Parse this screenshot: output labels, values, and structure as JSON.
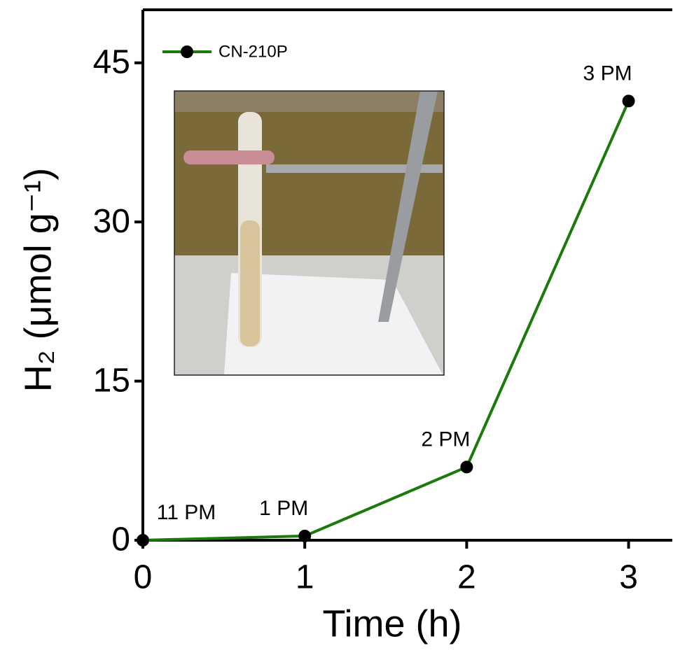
{
  "chart_data": {
    "type": "line",
    "xlabel": "Time (h)",
    "ylabel": "H₂ (μmol g⁻¹)",
    "x": [
      0,
      1,
      2,
      3
    ],
    "series": [
      {
        "name": "CN-210P",
        "color": "#1a7a0a",
        "values": [
          0,
          0.4,
          6.9,
          41.4
        ],
        "point_labels": [
          "11 PM",
          "1 PM",
          "2 PM",
          "3 PM"
        ]
      }
    ],
    "xlim": [
      0,
      3.27
    ],
    "xticks": [
      0,
      1,
      2,
      3
    ],
    "ylim": [
      0,
      50
    ],
    "yticks": [
      0,
      15,
      30,
      45
    ],
    "legend": "upper-left",
    "grid": false
  }
}
